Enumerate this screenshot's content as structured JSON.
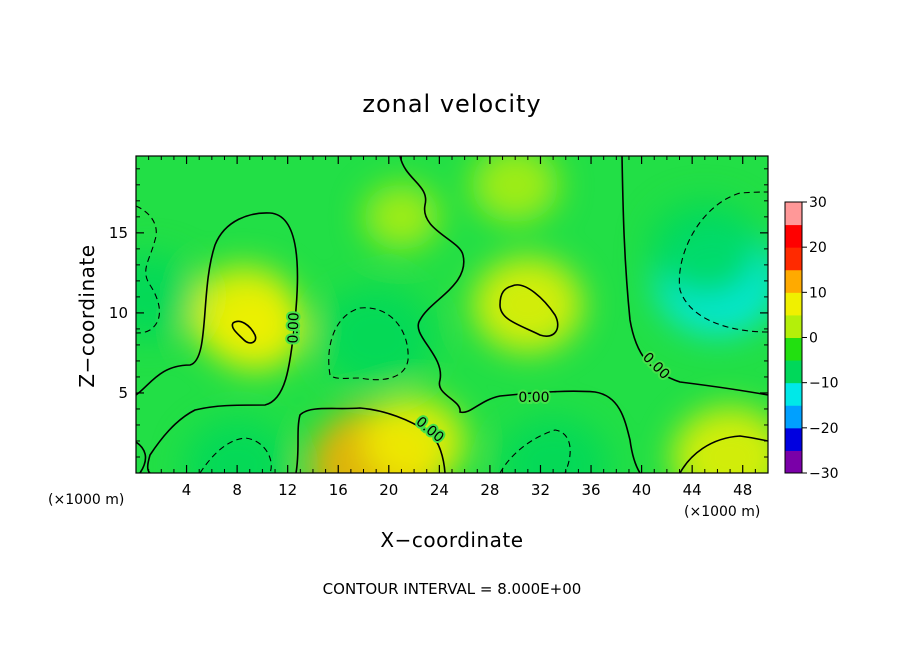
{
  "chart_data": {
    "type": "heatmap",
    "title": "zonal velocity",
    "xlabel": "X−coordinate",
    "ylabel": "Z−coordinate",
    "x_unit": "(×1000 m)",
    "y_unit": "(×1000 m)",
    "xlim": [
      0,
      50
    ],
    "ylim": [
      0,
      19.8
    ],
    "x_ticks": [
      4,
      8,
      12,
      16,
      20,
      24,
      28,
      32,
      36,
      40,
      44,
      48
    ],
    "y_ticks": [
      5,
      10,
      15
    ],
    "colorbar": {
      "range": [
        -30,
        30
      ],
      "ticks": [
        30,
        20,
        10,
        0,
        -10,
        -20,
        -30
      ],
      "tick_labels": [
        "30",
        "20",
        "10",
        "0",
        "−10",
        "−20",
        "−30"
      ],
      "colors": [
        "#7a00a8",
        "#0000e0",
        "#00a0ff",
        "#00e8e8",
        "#00d85a",
        "#22e010",
        "#b4ef0a",
        "#f0f000",
        "#ffaa00",
        "#ff2a00",
        "#ff0000",
        "#ff9898"
      ]
    },
    "contour_interval": "CONTOUR INTERVAL = 8.000E+00",
    "contour_labels": [
      "0.00",
      "0.00",
      "0.00",
      "0.00"
    ],
    "field_features": [
      {
        "x": 31,
        "z": 10.5,
        "value": 8
      },
      {
        "x": 8.5,
        "z": 10,
        "value": 8
      },
      {
        "x": 9.5,
        "z": 9,
        "value": 6
      },
      {
        "x": 19,
        "z": 0.5,
        "value": 12
      },
      {
        "x": 22,
        "z": 2,
        "value": 7
      },
      {
        "x": 47,
        "z": 1,
        "value": 9
      },
      {
        "x": 46,
        "z": 12,
        "value": -11
      },
      {
        "x": 45,
        "z": 14,
        "value": -8
      },
      {
        "x": 19,
        "z": 8.5,
        "value": -9
      },
      {
        "x": 1,
        "z": 11,
        "value": -6
      },
      {
        "x": 8,
        "z": 0.5,
        "value": -7
      },
      {
        "x": 33,
        "z": 0.5,
        "value": -8
      },
      {
        "x": 21,
        "z": 16,
        "value": 2
      },
      {
        "x": 30,
        "z": 18,
        "value": 4
      }
    ]
  }
}
